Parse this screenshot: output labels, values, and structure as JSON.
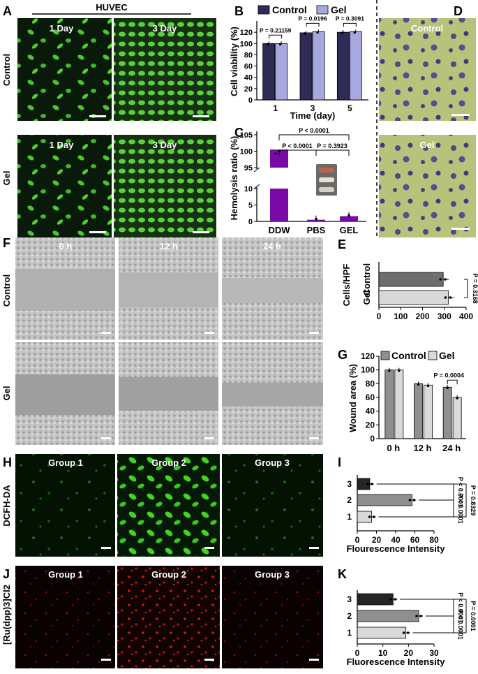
{
  "panel_letters": {
    "A": "A",
    "B": "B",
    "C": "C",
    "D": "D",
    "E": "E",
    "F": "F",
    "G": "G",
    "H": "H",
    "I": "I",
    "J": "J",
    "K": "K"
  },
  "panelA": {
    "header": "HUVEC",
    "row_labels": [
      "Control",
      "Gel"
    ],
    "col_labels": [
      "1 Day",
      "3 Day"
    ]
  },
  "panelD": {
    "labels": [
      "Control",
      "Gel"
    ]
  },
  "panelF": {
    "row_labels": [
      "Control",
      "Gel"
    ],
    "col_labels": [
      "0 h",
      "12 h",
      "24 h"
    ]
  },
  "panelH": {
    "row_label": "DCFH-DA",
    "col_labels": [
      "Group 1",
      "Group 2",
      "Group 3"
    ]
  },
  "panelJ": {
    "row_label": "[Ru(dpp)3]Cl2",
    "col_labels": [
      "Group 1",
      "Group 2",
      "Group 3"
    ]
  },
  "colors": {
    "control": "#2e2b57",
    "gel": "#a8a8e0",
    "hemolysis": "#7a0aa6",
    "dark_gray": "#6e6e6e",
    "light_gray": "#d9d9d9",
    "mid_gray": "#8f8f8f",
    "black": "#262626",
    "fluor_green": "#35c81f",
    "fluor_red": "#c81414"
  },
  "chart_data": [
    {
      "id": "B",
      "type": "bar",
      "ylabel": "Cell viability (%)",
      "xlabel": "Time (day)",
      "categories": [
        "1",
        "3",
        "5"
      ],
      "ylim": [
        0,
        140
      ],
      "yticks": [
        0,
        20,
        40,
        60,
        80,
        100,
        120
      ],
      "legend": [
        "Control",
        "Gel"
      ],
      "series": [
        {
          "name": "Control",
          "values": [
            100,
            119,
            120
          ]
        },
        {
          "name": "Gel",
          "values": [
            100,
            121,
            121
          ]
        }
      ],
      "annotations": [
        "P = 0.21159",
        "P = 0.0196",
        "P = 0.3091"
      ]
    },
    {
      "id": "C",
      "type": "bar",
      "ylabel": "Hemolysis ratio (%)",
      "categories": [
        "DDW",
        "PBS",
        "GEL"
      ],
      "values": [
        100.5,
        0.5,
        1.6
      ],
      "yticks_lower": [
        0,
        5,
        10
      ],
      "yticks_upper": [
        95,
        100,
        105
      ],
      "annotations": [
        "P < 0.0001",
        "P < 0.0001",
        "P = 0.3923"
      ]
    },
    {
      "id": "E",
      "type": "bar",
      "orientation": "horizontal",
      "ylabel": "Cells/HPF",
      "categories": [
        "Control",
        "Gel"
      ],
      "values": [
        295,
        318
      ],
      "xlim": [
        0,
        400
      ],
      "xticks": [
        0,
        100,
        200,
        300,
        400
      ],
      "annotations": [
        "P = 0.3168"
      ]
    },
    {
      "id": "G",
      "type": "bar",
      "ylabel": "Wound area (%)",
      "categories": [
        "0 h",
        "12 h",
        "24 h"
      ],
      "ylim": [
        0,
        120
      ],
      "yticks": [
        0,
        20,
        40,
        60,
        80,
        100,
        120
      ],
      "legend": [
        "Control",
        "Gel"
      ],
      "series": [
        {
          "name": "Control",
          "values": [
            100,
            80,
            75
          ]
        },
        {
          "name": "Gel",
          "values": [
            100,
            78,
            60
          ]
        }
      ],
      "annotations": [
        "P = 0.0004"
      ]
    },
    {
      "id": "I",
      "type": "bar",
      "orientation": "horizontal",
      "xlabel": "Flourescence Intensity",
      "categories": [
        "3",
        "2",
        "1"
      ],
      "values": [
        13,
        57,
        15
      ],
      "xlim": [
        0,
        80
      ],
      "xticks": [
        0,
        20,
        40,
        60,
        80
      ],
      "annotations": [
        "P < 0.0001",
        "P < 0.0001",
        "P = 0.8329"
      ]
    },
    {
      "id": "K",
      "type": "bar",
      "orientation": "horizontal",
      "xlabel": "Fluorescence Intensity",
      "categories": [
        "3",
        "2",
        "1"
      ],
      "values": [
        14,
        24,
        19
      ],
      "xlim": [
        0,
        30
      ],
      "xticks": [
        0,
        10,
        20,
        30
      ],
      "annotations": [
        "P < 0.0001",
        "P < 0.0001",
        "P = 0.0001"
      ]
    }
  ]
}
